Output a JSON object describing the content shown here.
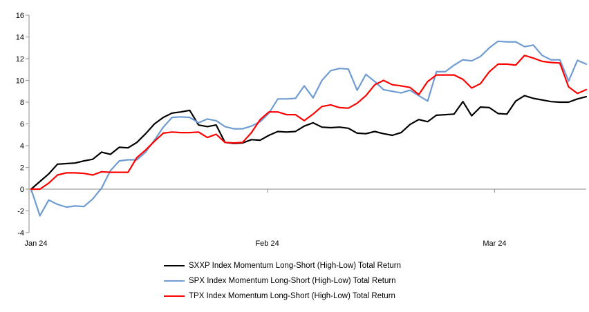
{
  "chart_data": {
    "type": "line",
    "title": "",
    "legend_position": "bottom-center",
    "grid": "zero-line-only",
    "axis_color": "#A0A0A0",
    "text_color": "#000000",
    "x_axis": {
      "tick_labels": [
        "Jan 24",
        "Feb 24",
        "Mar 24"
      ],
      "tick_positions": [
        0,
        26.8,
        52.6
      ],
      "unit": "trading-day-index"
    },
    "y_axis": {
      "min": -4,
      "max": 16,
      "step": 2,
      "tick_values": [
        16,
        14,
        12,
        10,
        8,
        6,
        4,
        2,
        0,
        -2,
        -4
      ],
      "tick_labels": [
        "16",
        "14",
        "12",
        "10",
        "8",
        "6",
        "4",
        "2",
        "0",
        "-2",
        "-4"
      ]
    },
    "series": [
      {
        "key": "sxxp",
        "name": "SXXP Index Momentum Long-Short (High-Low) Total Return",
        "color": "#000000",
        "values": [
          0,
          0.7,
          1.4,
          2.3,
          2.35,
          2.4,
          2.6,
          2.75,
          3.4,
          3.2,
          3.85,
          3.8,
          4.3,
          5.1,
          6.0,
          6.6,
          7.0,
          7.1,
          7.25,
          5.9,
          5.75,
          5.9,
          4.3,
          4.2,
          4.25,
          4.55,
          4.5,
          4.95,
          5.3,
          5.25,
          5.3,
          5.8,
          6.1,
          5.7,
          5.65,
          5.7,
          5.6,
          5.15,
          5.1,
          5.3,
          5.1,
          4.95,
          5.2,
          5.95,
          6.4,
          6.2,
          6.8,
          6.85,
          6.9,
          8.05,
          6.75,
          7.55,
          7.5,
          6.95,
          6.9,
          8.1,
          8.6,
          8.35,
          8.2,
          8.05,
          8.0,
          8.0,
          8.3,
          8.5
        ]
      },
      {
        "key": "spx",
        "name": "SPX Index Momentum Long-Short (High-Low) Total Return",
        "color": "#6E9BD2",
        "values": [
          0,
          -2.45,
          -1.0,
          -1.4,
          -1.65,
          -1.55,
          -1.6,
          -0.9,
          0.1,
          1.7,
          2.6,
          2.7,
          2.7,
          3.4,
          4.5,
          5.7,
          6.6,
          6.65,
          6.6,
          6.1,
          6.45,
          6.3,
          5.75,
          5.55,
          5.55,
          5.8,
          6.2,
          7.0,
          8.3,
          8.3,
          8.35,
          9.5,
          8.4,
          10.0,
          10.9,
          11.1,
          11.05,
          9.1,
          10.55,
          9.9,
          9.15,
          9.0,
          8.85,
          9.1,
          8.6,
          8.1,
          10.8,
          10.8,
          11.4,
          11.9,
          11.8,
          12.2,
          13.0,
          13.6,
          13.55,
          13.55,
          13.1,
          13.25,
          12.3,
          11.9,
          11.9,
          9.95,
          11.85,
          11.5
        ]
      },
      {
        "key": "tpx",
        "name": "TPX Index Momentum Long-Short (High-Low) Total Return",
        "color": "#FF0000",
        "values": [
          0,
          0,
          0.55,
          1.3,
          1.5,
          1.5,
          1.45,
          1.3,
          1.6,
          1.55,
          1.55,
          1.55,
          2.9,
          3.6,
          4.4,
          5.15,
          5.25,
          5.2,
          5.2,
          5.25,
          4.75,
          5.05,
          4.3,
          4.25,
          4.3,
          5.2,
          6.4,
          7.1,
          7.1,
          6.85,
          6.85,
          6.3,
          6.9,
          7.6,
          7.75,
          7.5,
          7.45,
          7.9,
          8.6,
          9.6,
          10.0,
          9.6,
          9.5,
          9.35,
          8.7,
          9.9,
          10.5,
          10.5,
          10.5,
          10.1,
          9.3,
          9.7,
          10.8,
          11.5,
          11.5,
          11.4,
          12.3,
          12.05,
          11.75,
          11.65,
          11.6,
          9.4,
          8.8,
          9.15
        ]
      }
    ]
  }
}
